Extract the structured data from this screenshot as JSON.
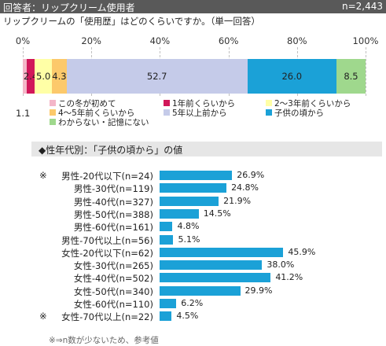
{
  "header": {
    "title": "回答者：リップクリーム使用者",
    "n": "n=2,443"
  },
  "question": "リップクリームの「使用歴」はどのくらいですか。（単一回答）",
  "stacked": {
    "ticks": [
      "0%",
      "20%",
      "40%",
      "60%",
      "80%",
      "100%"
    ],
    "outside_label": "1.1"
  },
  "section_title": "◆性年代別：「子供の頃から」の値",
  "footnote": "※⇒n数が少ないため、参考値",
  "chart_data": [
    {
      "type": "bar",
      "orientation": "horizontal-stacked",
      "xlim": [
        0,
        100
      ],
      "unit": "%",
      "series": [
        {
          "name": "この冬が初めて",
          "value": 1.1,
          "label": "1.1",
          "color": "#f4b6c8"
        },
        {
          "name": "1年前くらいから",
          "value": 2.4,
          "label": "2.4",
          "color": "#d1175a"
        },
        {
          "name": "2～3年前くらいから",
          "value": 5.0,
          "label": "5.0",
          "color": "#ffffa6"
        },
        {
          "name": "4～5年前くらいから",
          "value": 4.3,
          "label": "4.3",
          "color": "#fcc96b"
        },
        {
          "name": "5年以上前から",
          "value": 52.7,
          "label": "52.7",
          "color": "#c5cbe9"
        },
        {
          "name": "子供の頃から",
          "value": 26.0,
          "label": "26.0",
          "color": "#1ba1d7"
        },
        {
          "name": "わからない・記憶にない",
          "value": 8.5,
          "label": "8.5",
          "color": "#9fd88d"
        }
      ]
    },
    {
      "type": "bar",
      "orientation": "horizontal",
      "xlim": [
        0,
        50
      ],
      "color": "#1ba1d7",
      "categories": [
        {
          "label": "男性-20代以下(n=24)",
          "value": 26.9,
          "value_label": "26.9%",
          "mark": "※"
        },
        {
          "label": "男性-30代(n=119)",
          "value": 24.8,
          "value_label": "24.8%",
          "mark": ""
        },
        {
          "label": "男性-40代(n=327)",
          "value": 21.9,
          "value_label": "21.9%",
          "mark": ""
        },
        {
          "label": "男性-50代(n=388)",
          "value": 14.5,
          "value_label": "14.5%",
          "mark": ""
        },
        {
          "label": "男性-60代(n=161)",
          "value": 4.8,
          "value_label": "4.8%",
          "mark": ""
        },
        {
          "label": "男性-70代以上(n=56)",
          "value": 5.1,
          "value_label": "5.1%",
          "mark": ""
        },
        {
          "label": "女性-20代以下(n=62)",
          "value": 45.9,
          "value_label": "45.9%",
          "mark": ""
        },
        {
          "label": "女性-30代(n=265)",
          "value": 38.0,
          "value_label": "38.0%",
          "mark": ""
        },
        {
          "label": "女性-40代(n=502)",
          "value": 41.2,
          "value_label": "41.2%",
          "mark": ""
        },
        {
          "label": "女性-50代(n=340)",
          "value": 29.9,
          "value_label": "29.9%",
          "mark": ""
        },
        {
          "label": "女性-60代(n=110)",
          "value": 6.2,
          "value_label": "6.2%",
          "mark": ""
        },
        {
          "label": "女性-70代以上(n=22)",
          "value": 4.5,
          "value_label": "4.5%",
          "mark": "※"
        }
      ]
    }
  ]
}
